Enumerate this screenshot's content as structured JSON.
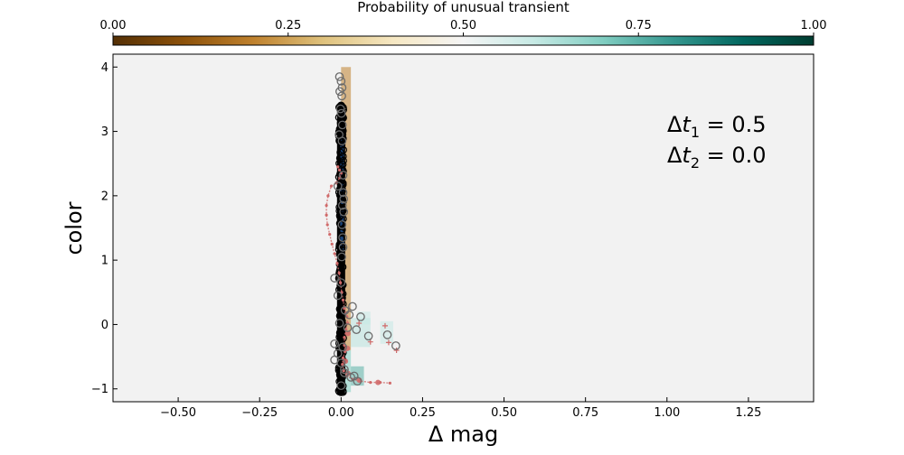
{
  "chart_data": {
    "type": "scatter",
    "xlabel": "Δ mag",
    "ylabel": "color",
    "xlim": [
      -0.7,
      1.45
    ],
    "ylim": [
      -1.2,
      4.2
    ],
    "x_ticks": [
      -0.5,
      -0.25,
      0.0,
      0.25,
      0.5,
      0.75,
      1.0,
      1.25
    ],
    "x_tick_labels": [
      "−0.50",
      "−0.25",
      "0.00",
      "0.25",
      "0.50",
      "0.75",
      "1.00",
      "1.25"
    ],
    "y_ticks": [
      -1,
      0,
      1,
      2,
      3,
      4
    ],
    "y_tick_labels": [
      "−1",
      "0",
      "1",
      "2",
      "3",
      "4"
    ],
    "grid": false,
    "background_color": "#f2f2f2",
    "annotation": {
      "line1": {
        "prefix": "Δ",
        "var": "t",
        "sub": "1",
        "value": " = 0.5"
      },
      "line2": {
        "prefix": "Δ",
        "var": "t",
        "sub": "2",
        "value": " = 0.0"
      }
    },
    "colorbar": {
      "title": "Probability of unusual transient",
      "range": [
        0.0,
        1.0
      ],
      "ticks": [
        0.0,
        0.25,
        0.5,
        0.75,
        1.0
      ],
      "tick_labels": [
        "0.00",
        "0.25",
        "0.50",
        "0.75",
        "1.00"
      ],
      "colormap": "BrBG",
      "placement": "top",
      "stops": [
        "#543005",
        "#8c510a",
        "#bf812d",
        "#dfc27d",
        "#f6e8c3",
        "#f5f5f5",
        "#c7eae5",
        "#80cdc1",
        "#35978f",
        "#01665e",
        "#003c30"
      ]
    },
    "colors": {
      "normal_points": "#000000",
      "normal_core": "#1f4e8c",
      "unusual_points": "#6b6b6b",
      "transient_track": "#d06a6a",
      "density_low": "#d9a441",
      "density_high": "#8fd3c5"
    },
    "series": [
      {
        "kind": "density",
        "cells": [
          {
            "x": [
              0.0,
              0.03
            ],
            "y": [
              -0.4,
              4.0
            ],
            "p": 0.2
          },
          {
            "x": [
              0.0,
              0.03
            ],
            "y": [
              -1.05,
              -0.4
            ],
            "p": 0.7
          },
          {
            "x": [
              0.03,
              0.07
            ],
            "y": [
              -0.95,
              -0.65
            ],
            "p": 0.75
          },
          {
            "x": [
              0.03,
              0.09
            ],
            "y": [
              -0.35,
              0.1
            ],
            "p": 0.62
          },
          {
            "x": [
              0.05,
              0.09
            ],
            "y": [
              0.0,
              0.2
            ],
            "p": 0.6
          },
          {
            "x": [
              0.12,
              0.16
            ],
            "y": [
              -0.3,
              0.05
            ],
            "p": 0.6
          }
        ]
      },
      {
        "kind": "normal_column",
        "x_center": 0.0,
        "y_range": [
          -1.05,
          3.4
        ]
      },
      {
        "kind": "unusual_points",
        "points": [
          [
            -0.005,
            3.85
          ],
          [
            0.0,
            3.78
          ],
          [
            0.003,
            3.68
          ],
          [
            -0.004,
            3.62
          ],
          [
            0.002,
            3.55
          ],
          [
            -0.002,
            3.35
          ],
          [
            0.001,
            3.28
          ],
          [
            0.004,
            3.1
          ],
          [
            -0.006,
            2.95
          ],
          [
            0.003,
            2.85
          ],
          [
            0.006,
            2.32
          ],
          [
            -0.01,
            2.15
          ],
          [
            0.006,
            2.05
          ],
          [
            0.008,
            1.95
          ],
          [
            0.004,
            1.85
          ],
          [
            0.008,
            1.75
          ],
          [
            0.003,
            1.55
          ],
          [
            0.005,
            1.35
          ],
          [
            0.006,
            1.2
          ],
          [
            0.002,
            1.05
          ],
          [
            -0.02,
            0.72
          ],
          [
            0.0,
            0.65
          ],
          [
            -0.01,
            0.45
          ],
          [
            0.035,
            0.28
          ],
          [
            0.012,
            0.22
          ],
          [
            0.025,
            0.15
          ],
          [
            0.06,
            0.12
          ],
          [
            -0.005,
            0.02
          ],
          [
            0.02,
            -0.05
          ],
          [
            0.047,
            -0.08
          ],
          [
            0.084,
            -0.18
          ],
          [
            0.142,
            -0.16
          ],
          [
            0.168,
            -0.33
          ],
          [
            -0.02,
            -0.3
          ],
          [
            0.005,
            -0.35
          ],
          [
            -0.01,
            -0.45
          ],
          [
            -0.02,
            -0.55
          ],
          [
            0.0,
            -0.6
          ],
          [
            0.01,
            -0.7
          ],
          [
            0.03,
            -0.82
          ],
          [
            0.04,
            -0.8
          ],
          [
            0.05,
            -0.88
          ],
          [
            0.0,
            -0.95
          ],
          [
            0.01,
            -0.75
          ]
        ]
      },
      {
        "kind": "track",
        "points": [
          [
            -0.01,
            2.45
          ],
          [
            -0.005,
            2.4
          ],
          [
            0.0,
            2.35
          ],
          [
            -0.004,
            2.28
          ],
          [
            -0.015,
            2.2
          ],
          [
            -0.03,
            2.15
          ],
          [
            -0.04,
            2.0
          ],
          [
            -0.045,
            1.85
          ],
          [
            -0.045,
            1.7
          ],
          [
            -0.042,
            1.55
          ],
          [
            -0.035,
            1.4
          ],
          [
            -0.028,
            1.25
          ],
          [
            -0.02,
            1.1
          ],
          [
            -0.012,
            0.95
          ],
          [
            -0.006,
            0.8
          ],
          [
            -0.002,
            0.65
          ],
          [
            0.002,
            0.5
          ],
          [
            0.006,
            0.38
          ],
          [
            0.01,
            0.25
          ],
          [
            0.015,
            0.18
          ],
          [
            0.018,
            0.12
          ],
          [
            0.02,
            0.02
          ],
          [
            0.015,
            -0.08
          ],
          [
            0.01,
            -0.2
          ],
          [
            0.01,
            -0.32
          ],
          [
            0.012,
            -0.42
          ],
          [
            0.006,
            -0.52
          ],
          [
            0.004,
            -0.62
          ],
          [
            0.008,
            -0.72
          ],
          [
            0.018,
            -0.8
          ],
          [
            0.035,
            -0.85
          ],
          [
            0.06,
            -0.88
          ],
          [
            0.09,
            -0.9
          ],
          [
            0.12,
            -0.9
          ],
          [
            0.15,
            -0.91
          ]
        ]
      },
      {
        "kind": "track_stars",
        "points": [
          [
            0.055,
            0.02
          ],
          [
            0.09,
            -0.27
          ],
          [
            0.146,
            -0.28
          ],
          [
            0.17,
            -0.4
          ],
          [
            0.135,
            -0.02
          ]
        ]
      }
    ]
  }
}
